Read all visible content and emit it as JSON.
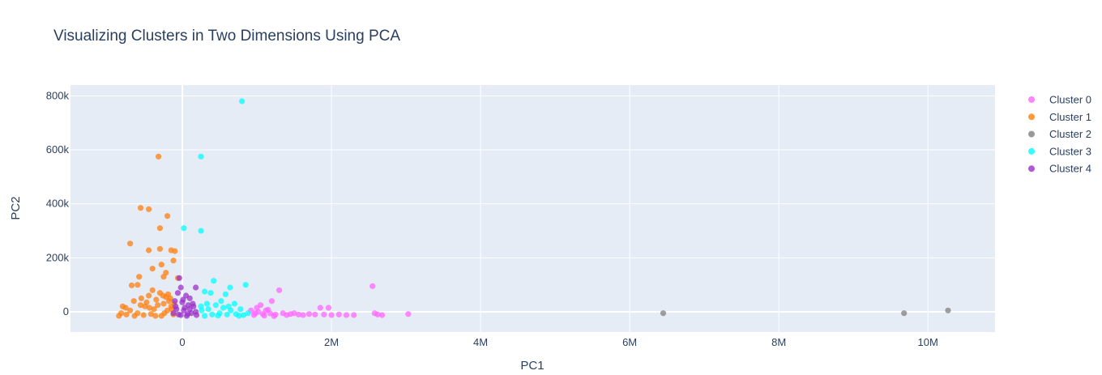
{
  "chart_data": {
    "type": "scatter",
    "title": "Visualizing Clusters in Two Dimensions Using PCA",
    "xlabel": "PC1",
    "ylabel": "PC2",
    "xlim": [
      -1500000,
      10900000
    ],
    "ylim": [
      -75000,
      840000
    ],
    "xticks": [
      0,
      2000000,
      4000000,
      6000000,
      8000000,
      10000000
    ],
    "xtick_labels": [
      "0",
      "2M",
      "4M",
      "6M",
      "8M",
      "10M"
    ],
    "yticks": [
      0,
      200000,
      400000,
      600000,
      800000
    ],
    "ytick_labels": [
      "0",
      "200k",
      "400k",
      "600k",
      "800k"
    ],
    "grid": true,
    "legend_position": "top-right",
    "series": [
      {
        "name": "Cluster 0",
        "color": "#ff66ff",
        "points": [
          [
            920000,
            5000
          ],
          [
            1000000,
            15000
          ],
          [
            1050000,
            25000
          ],
          [
            1080000,
            -8000
          ],
          [
            1150000,
            8000
          ],
          [
            1200000,
            40000
          ],
          [
            1250000,
            -10000
          ],
          [
            1300000,
            80000
          ],
          [
            1350000,
            -5000
          ],
          [
            1400000,
            -12000
          ],
          [
            1450000,
            -8000
          ],
          [
            1500000,
            -5000
          ],
          [
            1560000,
            -10000
          ],
          [
            1620000,
            -12000
          ],
          [
            1700000,
            -8000
          ],
          [
            1780000,
            -10000
          ],
          [
            1850000,
            15000
          ],
          [
            1900000,
            -10000
          ],
          [
            1960000,
            15000
          ],
          [
            2000000,
            -12000
          ],
          [
            2100000,
            -10000
          ],
          [
            2200000,
            -12000
          ],
          [
            2300000,
            -12000
          ],
          [
            2550000,
            95000
          ],
          [
            2580000,
            -5000
          ],
          [
            2620000,
            -10000
          ],
          [
            2680000,
            -12000
          ],
          [
            3030000,
            -8000
          ],
          [
            980000,
            -5000
          ],
          [
            1120000,
            5000
          ],
          [
            960000,
            -12000
          ],
          [
            1020000,
            0
          ],
          [
            1100000,
            -14000
          ],
          [
            1180000,
            -6000
          ],
          [
            1230000,
            -16000
          ]
        ]
      },
      {
        "name": "Cluster 1",
        "color": "#ff7f0e",
        "points": [
          [
            -320000,
            575000
          ],
          [
            -560000,
            385000
          ],
          [
            -450000,
            380000
          ],
          [
            -200000,
            355000
          ],
          [
            -300000,
            310000
          ],
          [
            -700000,
            253000
          ],
          [
            -300000,
            233000
          ],
          [
            -450000,
            228000
          ],
          [
            -150000,
            228000
          ],
          [
            -100000,
            225000
          ],
          [
            -120000,
            190000
          ],
          [
            -280000,
            175000
          ],
          [
            -400000,
            160000
          ],
          [
            -220000,
            145000
          ],
          [
            -580000,
            130000
          ],
          [
            -250000,
            130000
          ],
          [
            -60000,
            125000
          ],
          [
            -600000,
            100000
          ],
          [
            -680000,
            98000
          ],
          [
            -400000,
            80000
          ],
          [
            -800000,
            20000
          ],
          [
            -750000,
            -10000
          ],
          [
            -650000,
            40000
          ],
          [
            -550000,
            50000
          ],
          [
            -500000,
            20000
          ],
          [
            -450000,
            60000
          ],
          [
            -380000,
            10000
          ],
          [
            -350000,
            45000
          ],
          [
            -300000,
            70000
          ],
          [
            -280000,
            -15000
          ],
          [
            -250000,
            30000
          ],
          [
            -220000,
            55000
          ],
          [
            -200000,
            5000
          ],
          [
            -180000,
            40000
          ],
          [
            -150000,
            20000
          ],
          [
            -120000,
            -10000
          ],
          [
            -850000,
            -15000
          ],
          [
            -820000,
            -5000
          ],
          [
            -700000,
            5000
          ],
          [
            -600000,
            -5000
          ],
          [
            -520000,
            -12000
          ],
          [
            -480000,
            35000
          ],
          [
            -420000,
            -8000
          ],
          [
            -330000,
            25000
          ],
          [
            -260000,
            60000
          ],
          [
            -240000,
            -5000
          ],
          [
            -190000,
            65000
          ],
          [
            -160000,
            50000
          ],
          [
            -140000,
            10000
          ],
          [
            -110000,
            30000
          ],
          [
            -760000,
            15000
          ],
          [
            -640000,
            -15000
          ],
          [
            -560000,
            25000
          ],
          [
            -440000,
            15000
          ],
          [
            -360000,
            -15000
          ]
        ]
      },
      {
        "name": "Cluster 2",
        "color": "#808080",
        "points": [
          [
            6450000,
            -5000
          ],
          [
            9680000,
            -5000
          ],
          [
            10270000,
            5000
          ]
        ]
      },
      {
        "name": "Cluster 3",
        "color": "#00ffff",
        "points": [
          [
            800000,
            780000
          ],
          [
            250000,
            575000
          ],
          [
            20000,
            310000
          ],
          [
            250000,
            300000
          ],
          [
            420000,
            115000
          ],
          [
            850000,
            100000
          ],
          [
            640000,
            90000
          ],
          [
            300000,
            75000
          ],
          [
            380000,
            70000
          ],
          [
            580000,
            65000
          ],
          [
            520000,
            40000
          ],
          [
            700000,
            30000
          ],
          [
            250000,
            20000
          ],
          [
            350000,
            10000
          ],
          [
            450000,
            25000
          ],
          [
            500000,
            -5000
          ],
          [
            550000,
            15000
          ],
          [
            600000,
            -10000
          ],
          [
            650000,
            5000
          ],
          [
            720000,
            -8000
          ],
          [
            780000,
            10000
          ],
          [
            820000,
            -12000
          ],
          [
            880000,
            -5000
          ],
          [
            300000,
            -15000
          ],
          [
            400000,
            -10000
          ],
          [
            480000,
            -14000
          ],
          [
            260000,
            5000
          ],
          [
            330000,
            30000
          ],
          [
            620000,
            20000
          ],
          [
            760000,
            -15000
          ]
        ]
      },
      {
        "name": "Cluster 4",
        "color": "#9b30c8",
        "points": [
          [
            -40000,
            125000
          ],
          [
            -20000,
            90000
          ],
          [
            180000,
            90000
          ],
          [
            -60000,
            70000
          ],
          [
            50000,
            60000
          ],
          [
            100000,
            50000
          ],
          [
            -100000,
            40000
          ],
          [
            0,
            35000
          ],
          [
            80000,
            25000
          ],
          [
            150000,
            20000
          ],
          [
            -80000,
            10000
          ],
          [
            20000,
            5000
          ],
          [
            120000,
            -5000
          ],
          [
            -50000,
            -10000
          ],
          [
            60000,
            -15000
          ],
          [
            180000,
            0
          ],
          [
            -120000,
            -5000
          ],
          [
            30000,
            15000
          ],
          [
            140000,
            30000
          ],
          [
            -20000,
            -12000
          ],
          [
            100000,
            10000
          ],
          [
            -90000,
            20000
          ],
          [
            70000,
            -8000
          ],
          [
            190000,
            -12000
          ],
          [
            10000,
            45000
          ]
        ]
      }
    ]
  }
}
